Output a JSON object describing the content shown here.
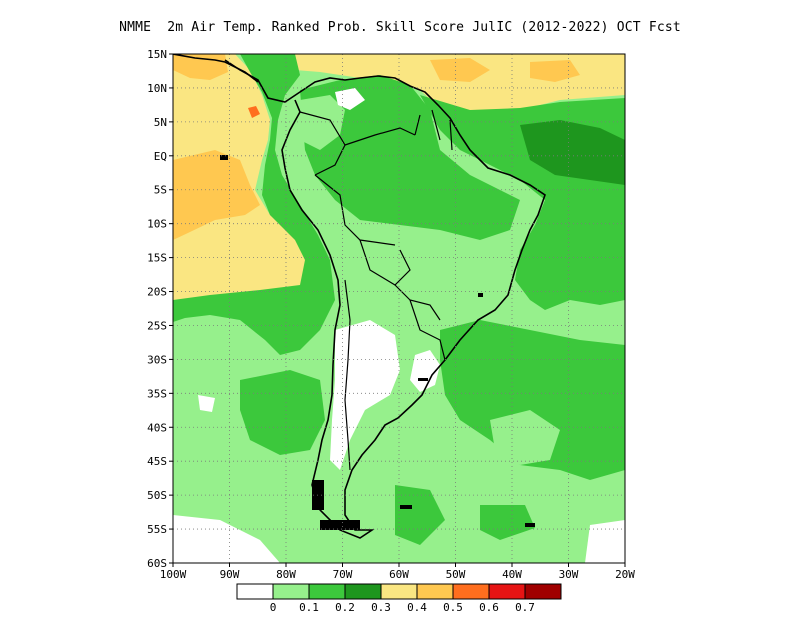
{
  "title": "NMME  2m Air Temp. Ranked Prob. Skill Score JulIC (2012-2022) OCT Fcst",
  "axes": {
    "lat_labels": [
      "15N",
      "10N",
      "5N",
      "EQ",
      "5S",
      "10S",
      "15S",
      "20S",
      "25S",
      "30S",
      "35S",
      "40S",
      "45S",
      "50S",
      "55S",
      "60S"
    ],
    "lon_labels": [
      "100W",
      "90W",
      "80W",
      "70W",
      "60W",
      "50W",
      "40W",
      "30W",
      "20W"
    ],
    "lat_range": [
      -60,
      15
    ],
    "lon_range": [
      -100,
      -20
    ],
    "grid": "dotted"
  },
  "colorbar": {
    "colors": [
      "#ffffff",
      "#96f08c",
      "#3cc83c",
      "#1e961e",
      "#fae682",
      "#ffc850",
      "#ff6e1e",
      "#e61414",
      "#a00000"
    ],
    "labels": [
      "0",
      "0.1",
      "0.2",
      "0.3",
      "0.4",
      "0.5",
      "0.6",
      "0.7"
    ]
  },
  "palette": {
    "white": "#ffffff",
    "light_green": "#96f08c",
    "green": "#3cc83c",
    "dark_green": "#1e961e",
    "yellow": "#fae682",
    "orange": "#ffc850",
    "dark_orange": "#ff6e1e"
  }
}
